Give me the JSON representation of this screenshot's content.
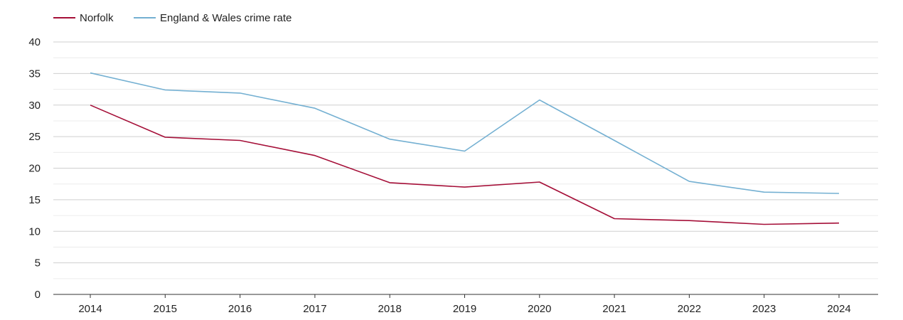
{
  "chart_data": {
    "type": "line",
    "title": "",
    "xlabel": "",
    "ylabel": "",
    "x": [
      2014,
      2015,
      2016,
      2017,
      2018,
      2019,
      2020,
      2021,
      2022,
      2023,
      2024
    ],
    "ylim": [
      0,
      40
    ],
    "y_ticks": [
      0,
      5,
      10,
      15,
      20,
      25,
      30,
      35,
      40
    ],
    "grid": true,
    "legend_position": "top-left",
    "series": [
      {
        "name": "Norfolk",
        "color": "#a50f38",
        "values": [
          30.0,
          24.9,
          24.4,
          22.0,
          17.7,
          17.0,
          17.8,
          12.0,
          11.7,
          11.1,
          11.3
        ]
      },
      {
        "name": "England & Wales crime rate",
        "color": "#74b0d2",
        "values": [
          35.1,
          32.4,
          31.9,
          29.5,
          24.6,
          22.7,
          30.8,
          24.4,
          17.9,
          16.2,
          16.0
        ]
      }
    ]
  }
}
